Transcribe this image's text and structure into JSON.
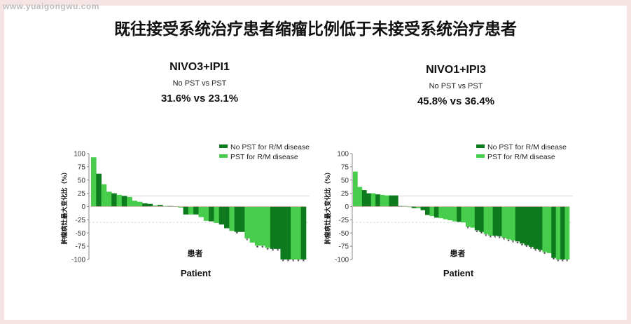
{
  "watermark": "www.yuaigongwu.com",
  "title": "既往接受系统治疗患者缩瘤比例低于未接受系统治疗患者",
  "panels": [
    {
      "arm": "NIVO3+IPI1",
      "comparison": "No PST vs PST",
      "rates": "31.6% vs 23.1%"
    },
    {
      "arm": "NIVO1+IPI3",
      "comparison": "No PST vs PST",
      "rates": "45.8% vs 36.4%"
    }
  ],
  "colors": {
    "no_pst": "#0e7a1e",
    "pst": "#47cc4c"
  },
  "chart_data": [
    {
      "type": "bar",
      "subtype": "waterfall",
      "ylabel": "肿瘤病灶最大变化比（%）",
      "xlabel_cn": "患者",
      "xlabel": "Patient",
      "ylim": [
        -100,
        100
      ],
      "yticks": [
        100,
        75,
        50,
        25,
        0,
        -25,
        -50,
        -75,
        -100
      ],
      "reference_lines": [
        20,
        -30
      ],
      "legend": [
        "No PST for R/M disease",
        "PST for R/M disease"
      ],
      "legend_position": "top-right",
      "series_key": {
        "D": "No PST for R/M disease",
        "L": "PST for R/M disease"
      },
      "bars": [
        [
          "L",
          93,
          0
        ],
        [
          "D",
          62,
          0
        ],
        [
          "L",
          42,
          0
        ],
        [
          "L",
          28,
          0
        ],
        [
          "D",
          25,
          0
        ],
        [
          "L",
          22,
          0
        ],
        [
          "D",
          20,
          0
        ],
        [
          "L",
          18,
          0
        ],
        [
          "L",
          11,
          0
        ],
        [
          "L",
          9,
          0
        ],
        [
          "D",
          6,
          0
        ],
        [
          "D",
          5,
          0
        ],
        [
          "L",
          2,
          0
        ],
        [
          "D",
          3,
          0
        ],
        [
          "L",
          1,
          0
        ],
        [
          "D",
          1,
          0
        ],
        [
          "L",
          0.5,
          0
        ],
        [
          "L",
          -2,
          0
        ],
        [
          "D",
          -15,
          0
        ],
        [
          "L",
          -15,
          0
        ],
        [
          "D",
          -15,
          0
        ],
        [
          "L",
          -20,
          0
        ],
        [
          "L",
          -27,
          0
        ],
        [
          "D",
          -28,
          0
        ],
        [
          "L",
          -31,
          0
        ],
        [
          "D",
          -34,
          0
        ],
        [
          "D",
          -41,
          0
        ],
        [
          "L",
          -46,
          0
        ],
        [
          "D",
          -48,
          1
        ],
        [
          "D",
          -48,
          0
        ],
        [
          "L",
          -60,
          1
        ],
        [
          "L",
          -68,
          0
        ],
        [
          "L",
          -74,
          1
        ],
        [
          "L",
          -74,
          1
        ],
        [
          "L",
          -78,
          1
        ],
        [
          "D",
          -80,
          1
        ],
        [
          "D",
          -80,
          1
        ],
        [
          "D",
          -100,
          1
        ],
        [
          "D",
          -100,
          1
        ],
        [
          "L",
          -100,
          1
        ],
        [
          "L",
          -100,
          1
        ],
        [
          "D",
          -100,
          1
        ]
      ]
    },
    {
      "type": "bar",
      "subtype": "waterfall",
      "ylabel": "肿瘤病灶最大变化比（%）",
      "xlabel_cn": "患者",
      "xlabel": "Patient",
      "ylim": [
        -100,
        100
      ],
      "yticks": [
        100,
        75,
        50,
        25,
        0,
        -25,
        -50,
        -75,
        -100
      ],
      "reference_lines": [
        20,
        -30
      ],
      "legend": [
        "No PST for R/M disease",
        "PST for R/M disease"
      ],
      "legend_position": "top-right",
      "series_key": {
        "D": "No PST for R/M disease",
        "L": "PST for R/M disease"
      },
      "bars": [
        [
          "L",
          66,
          0
        ],
        [
          "L",
          37,
          0
        ],
        [
          "D",
          31,
          0
        ],
        [
          "D",
          25,
          0
        ],
        [
          "L",
          25,
          0
        ],
        [
          "D",
          23,
          0
        ],
        [
          "L",
          22,
          0
        ],
        [
          "L",
          21,
          0
        ],
        [
          "D",
          21,
          0
        ],
        [
          "D",
          21,
          0
        ],
        [
          "D",
          1,
          0
        ],
        [
          "L",
          1,
          0
        ],
        [
          "L",
          -1,
          0
        ],
        [
          "D",
          -3,
          0
        ],
        [
          "L",
          -3,
          0
        ],
        [
          "D",
          -7,
          0
        ],
        [
          "D",
          -16,
          0
        ],
        [
          "L",
          -18,
          0
        ],
        [
          "D",
          -21,
          0
        ],
        [
          "L",
          -22,
          0
        ],
        [
          "L",
          -24,
          0
        ],
        [
          "L",
          -26,
          0
        ],
        [
          "L",
          -28,
          0
        ],
        [
          "D",
          -29,
          0
        ],
        [
          "L",
          -30,
          0
        ],
        [
          "L",
          -38,
          1
        ],
        [
          "L",
          -40,
          0
        ],
        [
          "D",
          -45,
          1
        ],
        [
          "D",
          -48,
          1
        ],
        [
          "L",
          -52,
          1
        ],
        [
          "L",
          -55,
          1
        ],
        [
          "D",
          -55,
          1
        ],
        [
          "D",
          -56,
          1
        ],
        [
          "L",
          -59,
          1
        ],
        [
          "L",
          -62,
          1
        ],
        [
          "L",
          -64,
          1
        ],
        [
          "D",
          -66,
          1
        ],
        [
          "D",
          -70,
          1
        ],
        [
          "D",
          -73,
          1
        ],
        [
          "D",
          -76,
          1
        ],
        [
          "D",
          -80,
          1
        ],
        [
          "D",
          -82,
          1
        ],
        [
          "L",
          -86,
          1
        ],
        [
          "L",
          -88,
          0
        ],
        [
          "D",
          -97,
          1
        ],
        [
          "L",
          -100,
          1
        ],
        [
          "D",
          -100,
          1
        ],
        [
          "L",
          -100,
          1
        ]
      ]
    }
  ]
}
